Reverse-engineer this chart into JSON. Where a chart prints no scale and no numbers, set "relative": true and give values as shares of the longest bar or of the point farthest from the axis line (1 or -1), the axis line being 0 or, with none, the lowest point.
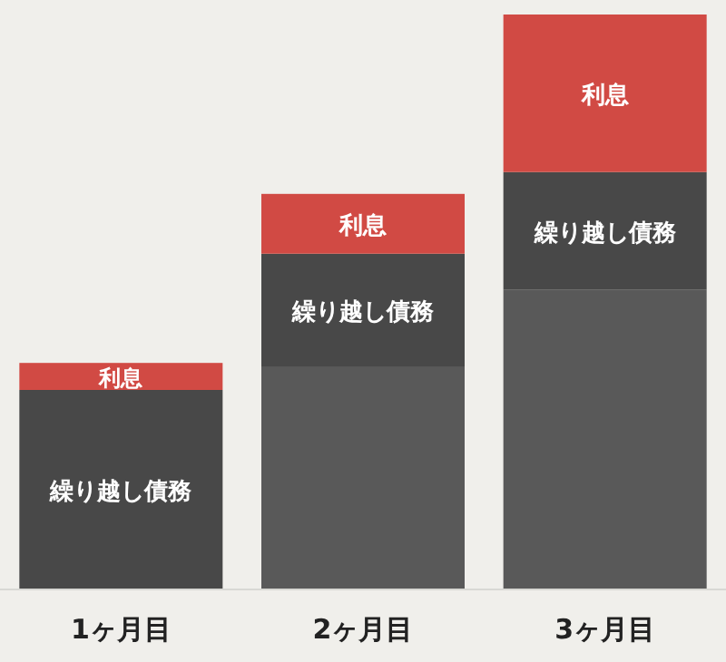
{
  "chart_data": {
    "type": "bar",
    "stacked": true,
    "relative": true,
    "categories": [
      "1ヶ月目",
      "2ヶ月目",
      "3ヶ月目"
    ],
    "series": [
      {
        "color": "#595959",
        "values": [
          0,
          0.388,
          0.521
        ]
      },
      {
        "name": "繰り越し債務",
        "color": "#484848",
        "values": [
          0.347,
          0.196,
          0.205
        ]
      },
      {
        "name": "利息",
        "color": "#d14a44",
        "values": [
          0.047,
          0.104,
          0.274
        ]
      }
    ]
  }
}
